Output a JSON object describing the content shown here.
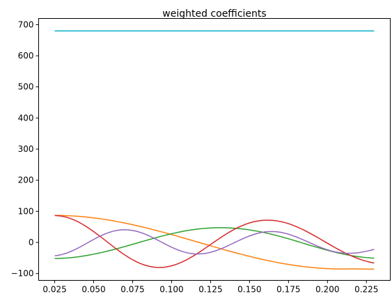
{
  "chart_data": {
    "type": "line",
    "title": "weighted coefficients",
    "xlabel": "",
    "ylabel": "",
    "xlim": [
      0.0147,
      0.2403
    ],
    "ylim": [
      -122,
      720
    ],
    "grid": false,
    "legend": "none",
    "x_ticks": [
      0.025,
      0.05,
      0.075,
      0.1,
      0.125,
      0.15,
      0.175,
      0.2,
      0.225
    ],
    "x_tick_labels": [
      "0.025",
      "0.050",
      "0.075",
      "0.100",
      "0.125",
      "0.150",
      "0.175",
      "0.200",
      "0.225"
    ],
    "y_ticks": [
      -100,
      0,
      100,
      200,
      300,
      400,
      500,
      600,
      700
    ],
    "y_tick_labels": [
      "−100",
      "0",
      "100",
      "200",
      "300",
      "400",
      "500",
      "600",
      "700"
    ],
    "x": [
      0.025,
      0.0275,
      0.03,
      0.0325,
      0.035,
      0.0375,
      0.04,
      0.0425,
      0.045,
      0.0475,
      0.05,
      0.0525,
      0.055,
      0.0575,
      0.06,
      0.0625,
      0.065,
      0.0675,
      0.07,
      0.0725,
      0.075,
      0.0775,
      0.08,
      0.0825,
      0.085,
      0.0875,
      0.09,
      0.0925,
      0.095,
      0.0975,
      0.1,
      0.1025,
      0.105,
      0.1075,
      0.11,
      0.1125,
      0.115,
      0.1175,
      0.12,
      0.1225,
      0.125,
      0.1275,
      0.13,
      0.1325,
      0.135,
      0.1375,
      0.14,
      0.1425,
      0.145,
      0.1475,
      0.15,
      0.1525,
      0.155,
      0.1575,
      0.16,
      0.1625,
      0.165,
      0.1675,
      0.17,
      0.1725,
      0.175,
      0.1775,
      0.18,
      0.1825,
      0.185,
      0.1875,
      0.19,
      0.1925,
      0.195,
      0.1975,
      0.2,
      0.2025,
      0.205,
      0.2075,
      0.21,
      0.2125,
      0.215,
      0.2175,
      0.22,
      0.2225,
      0.225,
      0.2275,
      0.23
    ],
    "series": [
      {
        "color": "#1f77b4",
        "values": [
          680,
          680,
          680,
          680,
          680,
          680,
          680,
          680,
          680,
          680,
          680,
          680,
          680,
          680,
          680,
          680,
          680,
          680,
          680,
          680,
          680,
          680,
          680,
          680,
          680,
          680,
          680,
          680,
          680,
          680,
          680,
          680,
          680,
          680,
          680,
          680,
          680,
          680,
          680,
          680,
          680,
          680,
          680,
          680,
          680,
          680,
          680,
          680,
          680,
          680,
          680,
          680,
          680,
          680,
          680,
          680,
          680,
          680,
          680,
          680,
          680,
          680,
          680,
          680,
          680,
          680,
          680,
          680,
          680,
          680,
          680,
          680,
          680,
          680,
          680,
          680,
          680,
          680,
          680,
          680,
          680,
          680,
          680
        ]
      },
      {
        "color": "#17becf",
        "values": [
          680,
          680,
          680,
          680,
          680,
          680,
          680,
          680,
          680,
          680,
          680,
          680,
          680,
          680,
          680,
          680,
          680,
          680,
          680,
          680,
          680,
          680,
          680,
          680,
          680,
          680,
          680,
          680,
          680,
          680,
          680,
          680,
          680,
          680,
          680,
          680,
          680,
          680,
          680,
          680,
          680,
          680,
          680,
          680,
          680,
          680,
          680,
          680,
          680,
          680,
          680,
          680,
          680,
          680,
          680,
          680,
          680,
          680,
          680,
          680,
          680,
          680,
          680,
          680,
          680,
          680,
          680,
          680,
          680,
          680,
          680,
          680,
          680,
          680,
          680,
          680,
          680,
          680,
          680,
          680,
          680,
          680,
          680
        ]
      },
      {
        "color": "#ff7f0e",
        "values": [
          86.9,
          86.8,
          86.5,
          86.1,
          85.5,
          84.8,
          83.9,
          82.9,
          81.7,
          80.3,
          78.8,
          77.2,
          75.5,
          73.6,
          71.6,
          69.4,
          67.1,
          64.7,
          62.2,
          59.6,
          56.9,
          54.1,
          51.2,
          48.2,
          45.1,
          41.9,
          38.7,
          35.4,
          32.1,
          28.7,
          25.2,
          21.7,
          18.2,
          14.6,
          11.0,
          7.4,
          3.7,
          0.1,
          -3.6,
          -7.2,
          -10.8,
          -14.4,
          -18.0,
          -21.6,
          -25.1,
          -28.5,
          -31.9,
          -35.3,
          -38.5,
          -41.7,
          -44.9,
          -47.9,
          -50.9,
          -53.7,
          -56.5,
          -59.2,
          -61.7,
          -64.2,
          -66.5,
          -68.7,
          -70.8,
          -72.8,
          -74.6,
          -76.3,
          -77.9,
          -79.3,
          -80.6,
          -81.7,
          -82.7,
          -83.6,
          -84.3,
          -84.8,
          -85.2,
          -85.4,
          -85.4,
          -85.3,
          -85.1,
          -85.1,
          -85.2,
          -85.4,
          -85.6,
          -85.8,
          -86.0
        ]
      },
      {
        "color": "#2ca02c",
        "values": [
          -52.0,
          -51.6,
          -51.0,
          -50.2,
          -49.1,
          -47.8,
          -46.3,
          -44.5,
          -42.5,
          -40.3,
          -37.9,
          -35.3,
          -32.6,
          -29.6,
          -26.6,
          -23.4,
          -20.1,
          -16.7,
          -13.2,
          -9.7,
          -6.1,
          -2.5,
          1.1,
          4.7,
          8.3,
          11.8,
          15.2,
          18.6,
          21.8,
          24.9,
          27.9,
          30.7,
          33.3,
          35.8,
          38.0,
          40.0,
          41.8,
          43.4,
          44.7,
          45.8,
          46.6,
          47.1,
          47.4,
          47.4,
          47.1,
          46.6,
          45.8,
          44.8,
          43.5,
          42.0,
          40.2,
          38.2,
          36.0,
          33.6,
          31.0,
          28.2,
          25.2,
          22.0,
          18.7,
          15.2,
          11.6,
          8.0,
          4.2,
          0.4,
          -3.4,
          -7.2,
          -11.0,
          -14.7,
          -18.3,
          -21.9,
          -25.3,
          -28.6,
          -31.7,
          -34.6,
          -37.3,
          -39.8,
          -42.1,
          -44.1,
          -45.9,
          -47.5,
          -48.8,
          -49.9,
          -50.7
        ]
      },
      {
        "color": "#d62728",
        "values": [
          86.5,
          85.8,
          84.0,
          81.1,
          77.1,
          72.1,
          66.2,
          59.4,
          51.8,
          43.6,
          34.8,
          25.6,
          16.1,
          6.3,
          -3.5,
          -13.2,
          -22.7,
          -31.8,
          -40.4,
          -48.4,
          -55.7,
          -62.2,
          -67.8,
          -72.5,
          -76.1,
          -78.7,
          -80.2,
          -80.6,
          -79.9,
          -78.1,
          -75.3,
          -71.5,
          -66.8,
          -61.2,
          -54.9,
          -47.9,
          -40.4,
          -32.4,
          -24.1,
          -15.5,
          -6.8,
          1.9,
          10.5,
          18.9,
          26.9,
          34.4,
          41.4,
          47.8,
          53.5,
          58.5,
          62.7,
          66.1,
          68.7,
          70.5,
          71.4,
          71.5,
          70.8,
          69.3,
          67.0,
          64.0,
          60.3,
          55.9,
          50.9,
          45.4,
          39.4,
          33.0,
          26.2,
          19.2,
          12.0,
          4.7,
          -2.6,
          -9.9,
          -17.0,
          -23.9,
          -30.5,
          -36.7,
          -42.5,
          -47.8,
          -52.6,
          -56.9,
          -60.6,
          -63.8,
          -66.4
        ]
      },
      {
        "color": "#9467bd",
        "values": [
          -43.0,
          -41.3,
          -38.5,
          -34.7,
          -29.9,
          -24.3,
          -18.1,
          -11.4,
          -4.4,
          2.7,
          9.6,
          16.2,
          22.3,
          27.7,
          32.3,
          36.0,
          38.7,
          40.3,
          40.8,
          40.2,
          38.5,
          35.8,
          32.1,
          27.6,
          22.3,
          16.5,
          10.2,
          3.7,
          -2.9,
          -9.3,
          -15.4,
          -21.0,
          -25.9,
          -30.1,
          -33.4,
          -35.7,
          -37.0,
          -37.2,
          -36.4,
          -34.6,
          -31.8,
          -28.2,
          -23.8,
          -18.8,
          -13.3,
          -7.5,
          -1.5,
          4.5,
          10.3,
          15.8,
          20.8,
          25.2,
          28.9,
          31.8,
          33.8,
          34.9,
          35.0,
          34.2,
          32.4,
          29.8,
          26.4,
          22.3,
          17.7,
          12.6,
          7.2,
          1.6,
          -4.0,
          -9.5,
          -14.7,
          -19.5,
          -23.8,
          -27.5,
          -30.5,
          -32.8,
          -34.3,
          -35.0,
          -35.0,
          -34.3,
          -32.9,
          -30.9,
          -28.4,
          -25.5,
          -22.3
        ]
      }
    ]
  }
}
